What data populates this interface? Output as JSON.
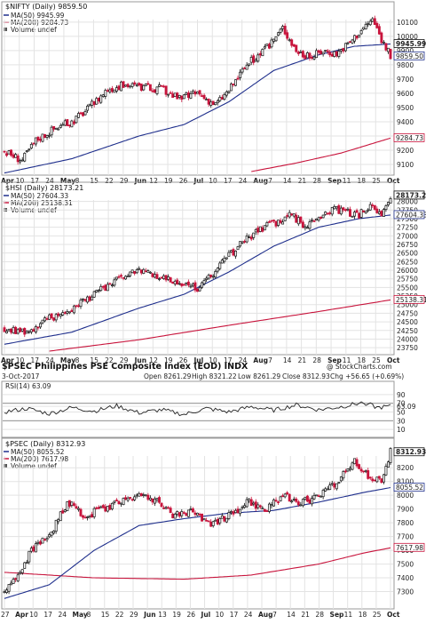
{
  "colors": {
    "up": "#111111",
    "down": "#c8143c",
    "ma50": "#1f2f8c",
    "ma200": "#c8143c",
    "grid": "#e3e3e3"
  },
  "chart_data": [
    {
      "type": "candlestick",
      "title": "$NIFTY (Daily) 9859.50",
      "legend": [
        "MA(50) 9945.99",
        "MA(200) 9284.73",
        "Volume undef"
      ],
      "y_ticks": [
        "10100",
        "10000",
        "9900",
        "9800",
        "9700",
        "9600",
        "9500",
        "9400",
        "9300",
        "9200",
        "9100"
      ],
      "ylim": [
        9050,
        10180
      ],
      "x_ticks": [
        "Apr",
        "10",
        "17",
        "24",
        "May",
        "8",
        "15",
        "22",
        "29",
        "Jun",
        "12",
        "19",
        "26",
        "Jul",
        "10",
        "17",
        "24",
        "Aug",
        "7",
        "14",
        "21",
        "28",
        "Sep",
        "11",
        "18",
        "25",
        "Oct"
      ],
      "price_tags": [
        "9945.99",
        "9859.50",
        "9284.73"
      ],
      "close_points": [
        [
          0,
          9190
        ],
        [
          8,
          9130
        ],
        [
          14,
          9270
        ],
        [
          22,
          9350
        ],
        [
          30,
          9400
        ],
        [
          38,
          9500
        ],
        [
          46,
          9630
        ],
        [
          54,
          9660
        ],
        [
          62,
          9640
        ],
        [
          70,
          9630
        ],
        [
          78,
          9560
        ],
        [
          86,
          9600
        ],
        [
          94,
          9520
        ],
        [
          100,
          9620
        ],
        [
          108,
          9800
        ],
        [
          116,
          9900
        ],
        [
          124,
          10060
        ],
        [
          130,
          9900
        ],
        [
          136,
          9850
        ],
        [
          142,
          9900
        ],
        [
          148,
          9880
        ],
        [
          154,
          9960
        ],
        [
          160,
          10060
        ],
        [
          164,
          10120
        ],
        [
          168,
          9980
        ],
        [
          172,
          9860
        ]
      ],
      "ma50": [
        [
          0,
          9040
        ],
        [
          30,
          9140
        ],
        [
          60,
          9300
        ],
        [
          80,
          9380
        ],
        [
          100,
          9540
        ],
        [
          120,
          9760
        ],
        [
          140,
          9870
        ],
        [
          156,
          9930
        ],
        [
          172,
          9946
        ]
      ],
      "ma200": [
        [
          110,
          9050
        ],
        [
          130,
          9110
        ],
        [
          150,
          9180
        ],
        [
          172,
          9285
        ]
      ]
    },
    {
      "type": "candlestick",
      "title": "$HSI (Daily) 28173.21",
      "legend": [
        "MA(50) 27604.33",
        "MA(200) 25138.31",
        "Volume undef"
      ],
      "y_ticks": [
        "28000",
        "27750",
        "27500",
        "27250",
        "27000",
        "26750",
        "26500",
        "26250",
        "26000",
        "25750",
        "25500",
        "25250",
        "25000",
        "24750",
        "24500",
        "24250",
        "24000",
        "23750"
      ],
      "ylim": [
        23650,
        28300
      ],
      "x_ticks": [
        "Apr",
        "10",
        "17",
        "24",
        "May",
        "8",
        "15",
        "22",
        "29",
        "Jun",
        "12",
        "19",
        "26",
        "Jul",
        "10",
        "17",
        "24",
        "Aug",
        "7",
        "14",
        "21",
        "28",
        "Sep",
        "11",
        "18",
        "25",
        "Oct"
      ],
      "price_tags": [
        "28173.21",
        "27604.33",
        "25138.31"
      ],
      "close_points": [
        [
          0,
          24300
        ],
        [
          10,
          24200
        ],
        [
          20,
          24600
        ],
        [
          30,
          24900
        ],
        [
          40,
          25300
        ],
        [
          50,
          25700
        ],
        [
          60,
          26000
        ],
        [
          70,
          25800
        ],
        [
          80,
          25600
        ],
        [
          86,
          25500
        ],
        [
          90,
          25700
        ],
        [
          98,
          26300
        ],
        [
          106,
          26800
        ],
        [
          114,
          27200
        ],
        [
          122,
          27400
        ],
        [
          128,
          27600
        ],
        [
          134,
          27300
        ],
        [
          140,
          27500
        ],
        [
          146,
          27800
        ],
        [
          152,
          27700
        ],
        [
          158,
          27600
        ],
        [
          164,
          27900
        ],
        [
          168,
          27500
        ],
        [
          172,
          28173
        ]
      ],
      "ma50": [
        [
          0,
          23850
        ],
        [
          30,
          24200
        ],
        [
          60,
          24900
        ],
        [
          80,
          25300
        ],
        [
          100,
          25950
        ],
        [
          120,
          26700
        ],
        [
          140,
          27250
        ],
        [
          158,
          27500
        ],
        [
          172,
          27604
        ]
      ],
      "ma200": [
        [
          20,
          23650
        ],
        [
          60,
          23980
        ],
        [
          100,
          24400
        ],
        [
          140,
          24800
        ],
        [
          172,
          25138
        ]
      ]
    },
    {
      "type": "line",
      "title": "$PSEC Philippines PSE Composite Index (EOD) INDX",
      "watermark": "@ StockCharts.com",
      "date": "3-Oct-2017",
      "ohlc": [
        "Open 8261.29",
        "High 8321.22",
        "Low 8261.29",
        "Close 8312.93",
        "Chg +56.65 (+0.69%)"
      ],
      "indicator_label": "RSI(14) 63.09",
      "y_ticks": [
        "90",
        "70",
        "63.09",
        "50",
        "30",
        "10"
      ],
      "ylim": [
        0,
        100
      ],
      "reference_lines": [
        30,
        70
      ],
      "rsi_points": [
        [
          0,
          50
        ],
        [
          10,
          58
        ],
        [
          20,
          46
        ],
        [
          30,
          60
        ],
        [
          40,
          52
        ],
        [
          50,
          64
        ],
        [
          60,
          48
        ],
        [
          70,
          55
        ],
        [
          80,
          44
        ],
        [
          90,
          58
        ],
        [
          100,
          50
        ],
        [
          110,
          62
        ],
        [
          120,
          54
        ],
        [
          130,
          66
        ],
        [
          140,
          55
        ],
        [
          150,
          62
        ],
        [
          160,
          72
        ],
        [
          166,
          60
        ],
        [
          172,
          63
        ]
      ]
    },
    {
      "type": "candlestick",
      "title": "$PSEC (Daily) 8312.93",
      "legend": [
        "MA(50) 8055.52",
        "MA(200) 7617.98",
        "Volume undef"
      ],
      "y_ticks": [
        "8200",
        "8100",
        "8000",
        "7900",
        "7800",
        "7700",
        "7600",
        "7500",
        "7400",
        "7300"
      ],
      "ylim": [
        7200,
        8350
      ],
      "x_ticks": [
        "27",
        "Apr",
        "10",
        "17",
        "24",
        "May",
        "8",
        "15",
        "22",
        "29",
        "Jun",
        "13",
        "19",
        "26",
        "Jul",
        "10",
        "17",
        "24",
        "Aug",
        "7",
        "14",
        "21",
        "28",
        "Sep",
        "11",
        "18",
        "25",
        "Oct"
      ],
      "price_tags": [
        "8312.93",
        "8055.52",
        "7617.98"
      ],
      "close_points": [
        [
          0,
          7300
        ],
        [
          6,
          7400
        ],
        [
          12,
          7600
        ],
        [
          20,
          7700
        ],
        [
          28,
          7950
        ],
        [
          36,
          7850
        ],
        [
          44,
          7900
        ],
        [
          52,
          7950
        ],
        [
          60,
          8000
        ],
        [
          68,
          7950
        ],
        [
          76,
          7850
        ],
        [
          84,
          7880
        ],
        [
          92,
          7800
        ],
        [
          100,
          7850
        ],
        [
          108,
          7950
        ],
        [
          116,
          7900
        ],
        [
          124,
          8000
        ],
        [
          132,
          7950
        ],
        [
          140,
          7980
        ],
        [
          148,
          8100
        ],
        [
          156,
          8250
        ],
        [
          162,
          8150
        ],
        [
          168,
          8100
        ],
        [
          172,
          8313
        ]
      ],
      "ma50": [
        [
          0,
          7250
        ],
        [
          20,
          7350
        ],
        [
          40,
          7600
        ],
        [
          60,
          7780
        ],
        [
          80,
          7830
        ],
        [
          100,
          7870
        ],
        [
          120,
          7890
        ],
        [
          140,
          7950
        ],
        [
          160,
          8020
        ],
        [
          172,
          8056
        ]
      ],
      "ma200": [
        [
          0,
          7440
        ],
        [
          40,
          7400
        ],
        [
          80,
          7390
        ],
        [
          110,
          7420
        ],
        [
          140,
          7500
        ],
        [
          160,
          7580
        ],
        [
          172,
          7618
        ]
      ]
    }
  ]
}
